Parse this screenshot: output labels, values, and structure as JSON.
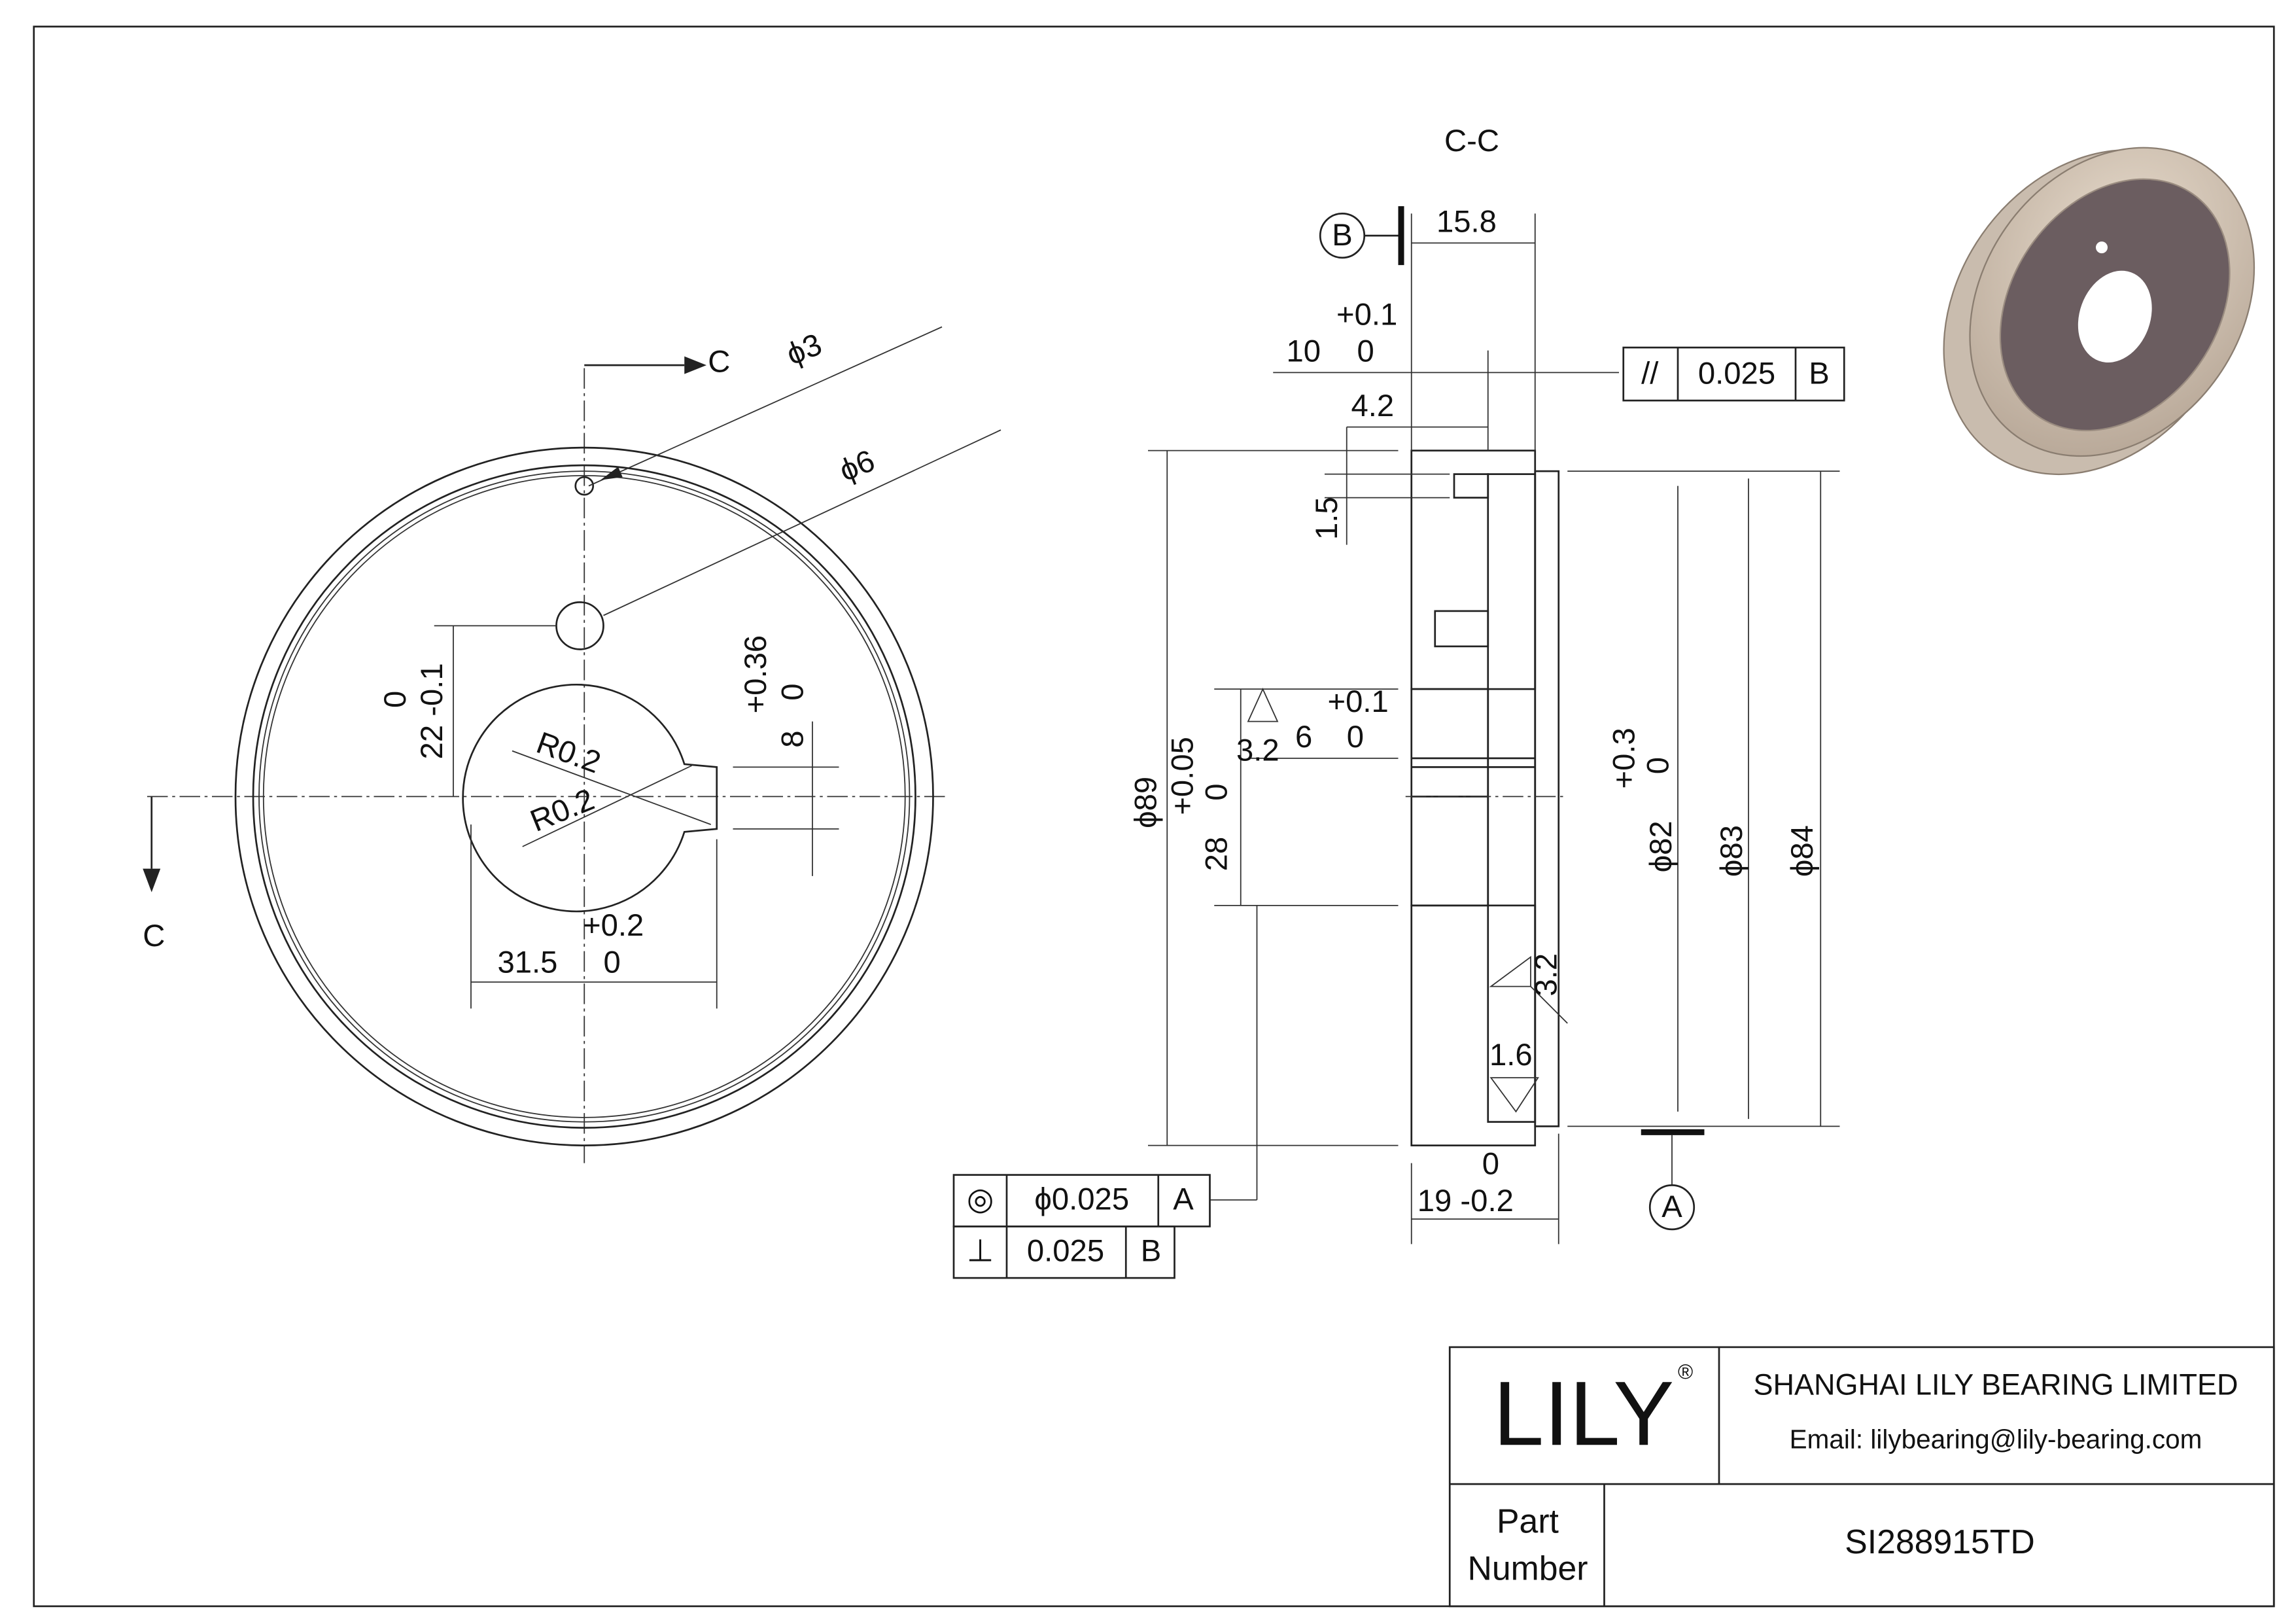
{
  "front_view": {
    "section_arrow_top": "C",
    "section_arrow_bottom": "C",
    "hole_small": "ϕ3",
    "hole_large": "ϕ6",
    "radius_upper": "R0.2",
    "radius_lower": "R0.2",
    "offset_upper_tol": "0",
    "offset_value": "22 -0.1",
    "key_upper_tol": "+0.36",
    "key_lower_tol": "0",
    "key_width": "8",
    "bore_upper_tol": "+0.2",
    "bore_value": "31.5",
    "bore_lower_tol": "0"
  },
  "section_view": {
    "title": "C-C",
    "datum_b": "B",
    "depth": "15.8",
    "groove_upper_tol": "+0.1",
    "groove_value": "10",
    "groove_lower_tol": "0",
    "step": "4.2",
    "chamfer": "1.5",
    "parallelism": {
      "symbol": "//",
      "value": "0.025",
      "datum": "B"
    },
    "slot_upper_tol": "+0.1",
    "slot_value": "6",
    "slot_lower_tol": "0",
    "roughness_bore": "3.2",
    "outer_dia": "ϕ89",
    "bore_upper_tol": "+0.05",
    "bore_lower_tol": "0",
    "bore": "28",
    "lip_upper_tol": "+0.3",
    "lip_lower_tol": "0",
    "dia_82": "ϕ82",
    "dia_83": "ϕ83",
    "dia_84": "ϕ84",
    "roughness_face": "3.2",
    "roughness_lip": "1.6",
    "width_upper_tol": "0",
    "width_value": "19 -0.2",
    "datum_a": "A",
    "concentricity": {
      "symbol": "◎",
      "value": "ϕ0.025",
      "datum": "A"
    },
    "perpendicularity": {
      "symbol": "⊥",
      "value": "0.025",
      "datum": "B"
    }
  },
  "title_block": {
    "logo": "LILY",
    "registered": "®",
    "company": "SHANGHAI LILY BEARING LIMITED",
    "email": "Email: lilybearing@lily-bearing.com",
    "part_label_1": "Part",
    "part_label_2": "Number",
    "part_number": "SI288915TD"
  }
}
